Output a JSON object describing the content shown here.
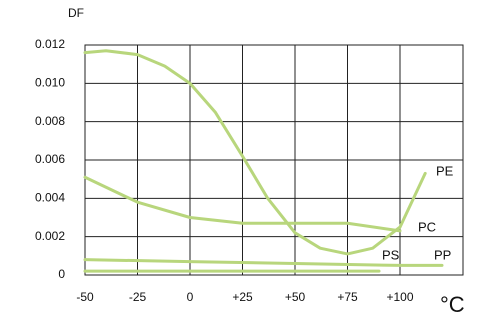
{
  "chart_data": {
    "type": "line",
    "y_label": "DF",
    "x_label": "°C",
    "xlim": [
      -50,
      130
    ],
    "ylim": [
      0,
      0.012
    ],
    "xticks": [
      -50,
      -25,
      0,
      {
        "value": 25,
        "label": "+25"
      },
      {
        "value": 50,
        "label": "+50"
      },
      {
        "value": 75,
        "label": "+75"
      },
      {
        "value": 100,
        "label": "+100"
      }
    ],
    "yticks": [
      0,
      0.002,
      0.004,
      0.006,
      0.008,
      {
        "value": 0.01,
        "label": "0.010"
      },
      0.012
    ],
    "grid": true,
    "series": [
      {
        "name": "PE",
        "color": "#b8d67c",
        "x": [
          -50,
          -40,
          -25,
          -12,
          0,
          12,
          25,
          37,
          50,
          62,
          75,
          87,
          100,
          112
        ],
        "values": [
          0.0116,
          0.0117,
          0.0115,
          0.0109,
          0.01,
          0.0085,
          0.0062,
          0.004,
          0.0022,
          0.0014,
          0.0011,
          0.0014,
          0.0025,
          0.0053
        ]
      },
      {
        "name": "PC",
        "color": "#b8d67c",
        "x": [
          -50,
          -25,
          0,
          25,
          50,
          75,
          100
        ],
        "values": [
          0.0051,
          0.0038,
          0.003,
          0.0027,
          0.0027,
          0.0027,
          0.0023
        ]
      },
      {
        "name": "PS",
        "color": "#b8d67c",
        "x": [
          -50,
          0,
          50,
          90
        ],
        "values": [
          0.0002,
          0.0002,
          0.0002,
          0.0002
        ]
      },
      {
        "name": "PP",
        "color": "#b8d67c",
        "x": [
          -50,
          0,
          50,
          100,
          120
        ],
        "values": [
          0.0008,
          0.0007,
          0.0006,
          0.0005,
          0.0005
        ]
      }
    ]
  }
}
